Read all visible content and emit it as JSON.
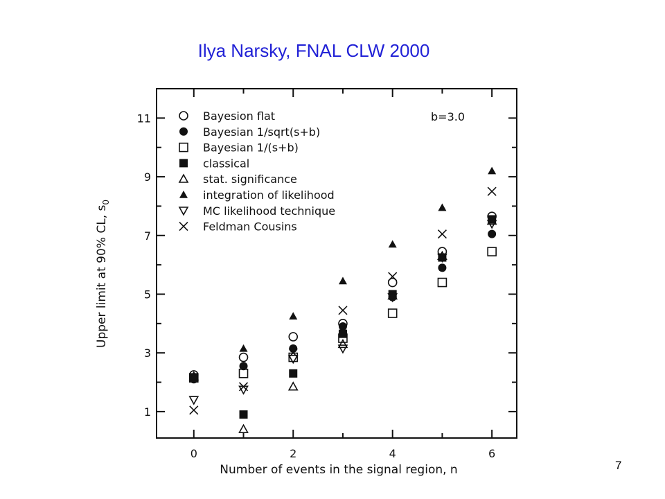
{
  "slide": {
    "title": "Ilya Narsky, FNAL CLW 2000",
    "page_number": "7"
  },
  "chart_data": {
    "type": "scatter",
    "title": "",
    "xlabel": "Number of events in the signal region, n",
    "ylabel": "Upper limit at 90% CL, s",
    "ylabel_subscript": "0",
    "annotation": "b=3.0",
    "xlim": [
      -0.75,
      6.5
    ],
    "ylim": [
      0.1,
      12.0
    ],
    "xticks": [
      0,
      2,
      4,
      6
    ],
    "yticks": [
      1,
      3,
      5,
      7,
      9,
      11
    ],
    "grid": false,
    "legend_position": "top-left",
    "series": [
      {
        "name": "Bayesion flat",
        "marker": "circle-open",
        "x": [
          0,
          1,
          2,
          3,
          4,
          5,
          6
        ],
        "y": [
          2.25,
          2.85,
          3.55,
          4.0,
          5.4,
          6.45,
          7.65
        ]
      },
      {
        "name": "Bayesian 1/sqrt(s+b)",
        "marker": "circle-filled",
        "x": [
          0,
          1,
          2,
          3,
          4,
          5,
          6
        ],
        "y": [
          2.1,
          2.55,
          3.15,
          3.9,
          4.9,
          5.9,
          7.05
        ]
      },
      {
        "name": "Bayesian 1/(s+b)",
        "marker": "square-open",
        "x": [
          0,
          1,
          2,
          3,
          4,
          5,
          6
        ],
        "y": [
          2.15,
          2.3,
          2.85,
          3.5,
          4.35,
          5.4,
          6.45
        ]
      },
      {
        "name": "classical",
        "marker": "square-filled",
        "x": [
          0,
          1,
          2,
          3,
          4,
          5,
          6
        ],
        "y": [
          2.15,
          0.9,
          2.3,
          3.65,
          5.0,
          6.25,
          7.55
        ]
      },
      {
        "name": "stat. significance",
        "marker": "triangle-open",
        "x": [
          0,
          1,
          2,
          3,
          4,
          5,
          6
        ],
        "y": [
          2.2,
          0.4,
          1.85,
          3.3,
          4.95,
          6.3,
          7.5
        ]
      },
      {
        "name": "integration of likelihood",
        "marker": "triangle-filled",
        "x": [
          0,
          1,
          2,
          3,
          4,
          5,
          6
        ],
        "y": [
          2.2,
          3.15,
          4.25,
          5.45,
          6.7,
          7.95,
          9.2
        ]
      },
      {
        "name": "MC likelihood technique",
        "marker": "triangle-down-open",
        "x": [
          0,
          1,
          2,
          3,
          4,
          5,
          6
        ],
        "y": [
          1.4,
          1.75,
          2.8,
          3.15,
          4.9,
          6.25,
          7.4
        ]
      },
      {
        "name": "Feldman Cousins",
        "marker": "cross",
        "x": [
          0,
          1,
          2,
          3,
          4,
          5,
          6
        ],
        "y": [
          1.05,
          1.85,
          3.0,
          4.45,
          5.6,
          7.05,
          8.5
        ]
      }
    ]
  }
}
